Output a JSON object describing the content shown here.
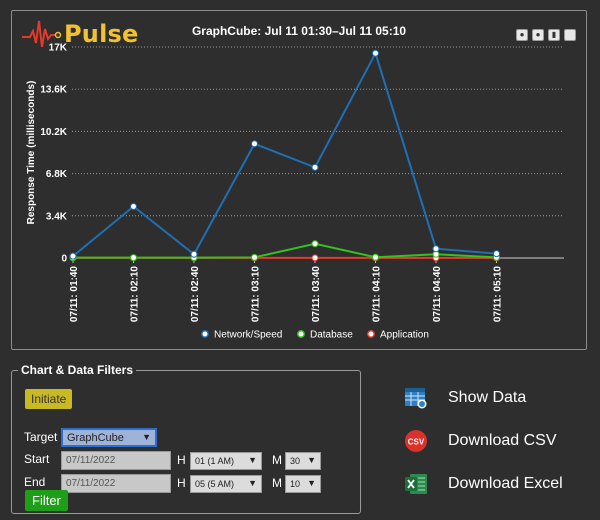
{
  "app": {
    "name": "Pulse"
  },
  "chart_data": {
    "type": "line",
    "title": "GraphCube: Jul 11 01:30–Jul 11 05:10",
    "xlabel": "",
    "ylabel": "Response Time (milliseconds)",
    "ylim": [
      0,
      17000
    ],
    "yticks": [
      "0",
      "3.4K",
      "6.8K",
      "10.2K",
      "13.6K",
      "17K"
    ],
    "ytick_values": [
      0,
      3400,
      6800,
      10200,
      13600,
      17000
    ],
    "categories": [
      "07/11: 01:40",
      "07/11: 02:10",
      "07/11: 02:40",
      "07/11: 03:10",
      "07/11: 03:40",
      "07/11: 04:10",
      "07/11: 04:40",
      "07/11: 05:10"
    ],
    "grid": true,
    "legend_position": "bottom",
    "series": [
      {
        "name": "Network/Speed",
        "color": "#1f6fb5",
        "values": [
          150,
          4150,
          300,
          9200,
          7300,
          16500,
          750,
          350
        ]
      },
      {
        "name": "Database",
        "color": "#33c21f",
        "values": [
          30,
          30,
          30,
          50,
          1150,
          60,
          300,
          50
        ]
      },
      {
        "name": "Application",
        "color": "#e83b2a",
        "values": [
          10,
          10,
          10,
          10,
          10,
          10,
          10,
          10
        ]
      }
    ]
  },
  "filters": {
    "legend": "Chart & Data Filters",
    "initiate_label": "Initiate",
    "target_label": "Target",
    "target_value": "GraphCube",
    "start_label": "Start",
    "start_date": "07/11/2022",
    "start_hour": "01 (1 AM)",
    "start_minute": "30",
    "end_label": "End",
    "end_date": "07/11/2022",
    "end_hour": "05 (5 AM)",
    "end_minute": "10",
    "h_label": "H",
    "m_label": "M",
    "filter_label": "Filter"
  },
  "actions": {
    "show_data": "Show Data",
    "download_csv": "Download CSV",
    "csv_icon_text": "CSV",
    "download_excel": "Download Excel"
  }
}
